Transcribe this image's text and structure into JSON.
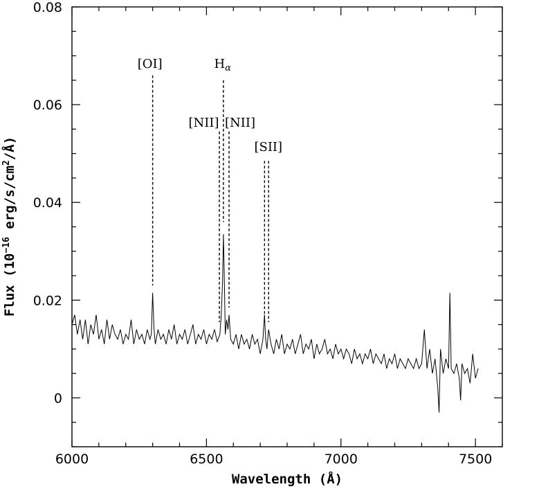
{
  "chart_data": {
    "type": "line",
    "title": "",
    "xlabel": "Wavelength (Å)",
    "ylabel_parts": {
      "prefix": "Flux (10",
      "exponent": "−16",
      "middle": " erg/s/cm",
      "exponent2": "2",
      "suffix": "/Å)"
    },
    "xlim": [
      6000,
      7600
    ],
    "ylim": [
      -0.01,
      0.08
    ],
    "x_ticks": [
      6000,
      6500,
      7000,
      7500
    ],
    "x_tick_labels": [
      "6000",
      "6500",
      "7000",
      "7500"
    ],
    "y_ticks": [
      0,
      0.02,
      0.04,
      0.06,
      0.08
    ],
    "y_tick_labels": [
      "0",
      "0.02",
      "0.04",
      "0.06",
      "0.08"
    ],
    "x_minor_step": 100,
    "y_minor_step": 0.005,
    "series": [
      {
        "x": [
          6000,
          6010,
          6020,
          6030,
          6040,
          6050,
          6060,
          6070,
          6080,
          6090,
          6100,
          6110,
          6120,
          6130,
          6140,
          6150,
          6160,
          6170,
          6180,
          6190,
          6200,
          6210,
          6220,
          6230,
          6240,
          6250,
          6260,
          6270,
          6280,
          6290,
          6295,
          6300,
          6305,
          6310,
          6320,
          6330,
          6340,
          6350,
          6360,
          6370,
          6380,
          6390,
          6400,
          6410,
          6420,
          6430,
          6440,
          6450,
          6460,
          6470,
          6480,
          6490,
          6500,
          6510,
          6520,
          6530,
          6540,
          6550,
          6555,
          6560,
          6563,
          6566,
          6570,
          6575,
          6580,
          6584,
          6590,
          6600,
          6610,
          6620,
          6630,
          6640,
          6650,
          6660,
          6670,
          6680,
          6690,
          6700,
          6710,
          6716,
          6720,
          6725,
          6731,
          6740,
          6750,
          6760,
          6770,
          6780,
          6790,
          6800,
          6810,
          6820,
          6830,
          6840,
          6850,
          6860,
          6870,
          6880,
          6890,
          6900,
          6910,
          6920,
          6930,
          6940,
          6950,
          6960,
          6970,
          6980,
          6990,
          7000,
          7010,
          7020,
          7030,
          7040,
          7050,
          7060,
          7070,
          7080,
          7090,
          7100,
          7110,
          7120,
          7130,
          7140,
          7150,
          7160,
          7170,
          7180,
          7190,
          7200,
          7210,
          7220,
          7230,
          7240,
          7250,
          7260,
          7270,
          7280,
          7290,
          7300,
          7310,
          7320,
          7330,
          7340,
          7350,
          7360,
          7365,
          7370,
          7380,
          7390,
          7400,
          7405,
          7410,
          7420,
          7430,
          7440,
          7445,
          7450,
          7460,
          7470,
          7480,
          7490,
          7500,
          7510
        ],
        "y": [
          0.015,
          0.017,
          0.013,
          0.016,
          0.012,
          0.016,
          0.011,
          0.015,
          0.013,
          0.017,
          0.012,
          0.014,
          0.011,
          0.016,
          0.012,
          0.015,
          0.013,
          0.012,
          0.014,
          0.011,
          0.013,
          0.012,
          0.016,
          0.011,
          0.014,
          0.012,
          0.013,
          0.011,
          0.014,
          0.012,
          0.013,
          0.0215,
          0.014,
          0.011,
          0.014,
          0.012,
          0.013,
          0.011,
          0.014,
          0.012,
          0.015,
          0.011,
          0.013,
          0.012,
          0.014,
          0.011,
          0.013,
          0.015,
          0.011,
          0.013,
          0.012,
          0.014,
          0.011,
          0.013,
          0.012,
          0.014,
          0.0115,
          0.013,
          0.017,
          0.024,
          0.0335,
          0.026,
          0.013,
          0.016,
          0.014,
          0.017,
          0.012,
          0.011,
          0.013,
          0.01,
          0.013,
          0.011,
          0.012,
          0.01,
          0.013,
          0.011,
          0.012,
          0.009,
          0.012,
          0.017,
          0.012,
          0.01,
          0.014,
          0.011,
          0.009,
          0.012,
          0.01,
          0.013,
          0.009,
          0.011,
          0.01,
          0.012,
          0.009,
          0.011,
          0.013,
          0.009,
          0.011,
          0.01,
          0.012,
          0.008,
          0.011,
          0.009,
          0.01,
          0.012,
          0.009,
          0.01,
          0.008,
          0.011,
          0.009,
          0.01,
          0.008,
          0.01,
          0.009,
          0.007,
          0.01,
          0.008,
          0.009,
          0.007,
          0.009,
          0.008,
          0.01,
          0.007,
          0.009,
          0.008,
          0.007,
          0.009,
          0.006,
          0.008,
          0.007,
          0.009,
          0.006,
          0.008,
          0.007,
          0.006,
          0.008,
          0.007,
          0.006,
          0.008,
          0.006,
          0.007,
          0.014,
          0.006,
          0.01,
          0.005,
          0.008,
          0.002,
          -0.003,
          0.01,
          0.005,
          0.008,
          0.006,
          0.0215,
          0.006,
          0.005,
          0.007,
          0.004,
          -0.0005,
          0.007,
          0.005,
          0.006,
          0.003,
          0.009,
          0.004,
          0.006
        ]
      }
    ],
    "annotations": [
      {
        "label": "[OI]",
        "x": 6300,
        "y_top": 0.066,
        "y_bottom": 0.023,
        "label_x": 6290,
        "label_y": 0.0675,
        "kind": "plain"
      },
      {
        "label": "H",
        "sub": "α",
        "x": 6563,
        "y_top": 0.065,
        "y_bottom": 0.036,
        "label_x": 6560,
        "label_y": 0.0675,
        "kind": "subscript"
      },
      {
        "label": "[NII]",
        "x": 6548,
        "y_top": 0.0545,
        "y_bottom": 0.0155,
        "label_x": 6490,
        "label_y": 0.0555,
        "kind": "plain"
      },
      {
        "label": "[NII]",
        "x": 6584,
        "y_top": 0.0545,
        "y_bottom": 0.0185,
        "label_x": 6625,
        "label_y": 0.0555,
        "kind": "plain"
      },
      {
        "label": "[SII]",
        "x": 6716,
        "y_top": 0.0485,
        "y_bottom": 0.0155,
        "label_x": 6730,
        "label_y": 0.0505,
        "kind": "plain"
      },
      {
        "label": "",
        "x": 6731,
        "y_top": 0.0485,
        "y_bottom": 0.0155,
        "kind": "line-only"
      }
    ],
    "grid": false,
    "legend": "none",
    "colors": {
      "line": "#000000",
      "axis": "#000000",
      "background": "#ffffff"
    }
  }
}
